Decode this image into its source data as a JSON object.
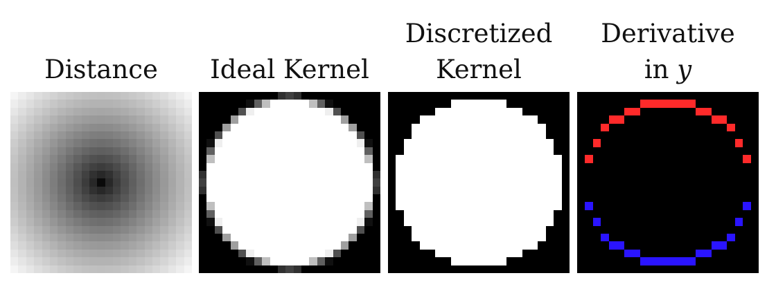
{
  "panels": [
    {
      "id": "distance",
      "title_lines": [
        "Distance"
      ]
    },
    {
      "id": "ideal",
      "title_lines": [
        "Ideal Kernel"
      ]
    },
    {
      "id": "discretized",
      "title_lines": [
        "Discretized",
        "Kernel"
      ]
    },
    {
      "id": "derivative",
      "title_lines": [
        "Derivative",
        "in "
      ],
      "title_var": "y"
    }
  ],
  "grid": {
    "cells": 23,
    "radius": 10.7
  },
  "colors": {
    "positive": "#ff2a2a",
    "negative": "#2a14ff",
    "background": "#000000",
    "inside": "#ffffff"
  }
}
